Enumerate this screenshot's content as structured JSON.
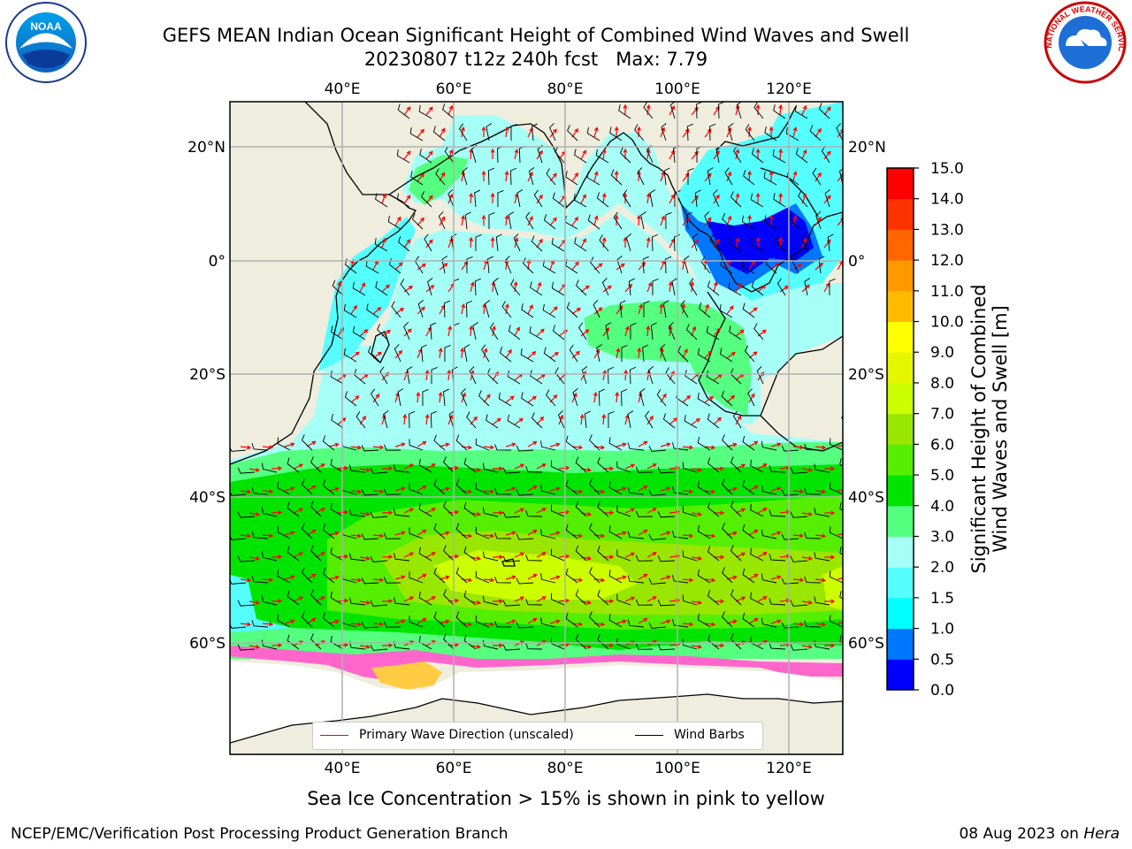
{
  "title": {
    "line1": "GEFS MEAN Indian Ocean Significant Height of Combined Wind Waves and Swell",
    "line2": "20230807 t12z 240h fcst   Max: 7.79"
  },
  "logos": {
    "left": {
      "name": "noaa-logo",
      "text": "NOAA",
      "ring_text": "NATIONAL OCEANIC AND ATMOSPHERIC ADMINISTRATION · U.S. DEPARTMENT OF COMMERCE"
    },
    "right": {
      "name": "nws-logo",
      "ring_text": "NATIONAL WEATHER SERVICE"
    }
  },
  "map": {
    "region": "Indian Ocean",
    "lon_range": [
      20,
      130
    ],
    "lat_range": [
      -72,
      28
    ],
    "lon_ticks": [
      "40°E",
      "60°E",
      "80°E",
      "100°E",
      "120°E"
    ],
    "lat_ticks_left": [
      "20°N",
      "0°",
      "20°S",
      "40°S",
      "60°S"
    ],
    "lat_ticks_right": [
      "20°N",
      "0°",
      "20°S",
      "40°S",
      "60°S"
    ],
    "land_color": "#efedde",
    "ocean_base_color": "#a6fff7",
    "overlays": [
      "Primary wave direction arrows (red)",
      "Wind barbs (black)"
    ]
  },
  "colorbar": {
    "label": "Significant Height of Combined Wind Waves and Swell [m]",
    "label_line1": "Significant Height of Combined",
    "label_line2": "Wind Waves and Swell [m]",
    "ticks": [
      "15.0",
      "14.0",
      "13.0",
      "12.0",
      "11.0",
      "10.0",
      "9.0",
      "8.0",
      "7.0",
      "6.0",
      "5.0",
      "4.0",
      "3.0",
      "2.0",
      "1.5",
      "1.0",
      "0.5",
      "0.0"
    ],
    "colors_bottom_to_top": [
      "#0000ff",
      "#0077ff",
      "#00ffff",
      "#55ffff",
      "#a6fff7",
      "#55ff80",
      "#00e400",
      "#55ee00",
      "#99e600",
      "#ccff00",
      "#e6f500",
      "#ffff00",
      "#ffbb00",
      "#ff9900",
      "#ff6600",
      "#ff3300",
      "#ff0000"
    ]
  },
  "legend": {
    "wave_direction": "Primary Wave Direction (unscaled)",
    "wind_barbs": "Wind Barbs",
    "wave_color": "#ff0000",
    "barb_color": "#000000"
  },
  "footer": {
    "caption": "Sea Ice Concentration > 15% is shown in pink to yellow",
    "left": "NCEP/EMC/Verification Post Processing Product Generation Branch",
    "right_date": "08 Aug 2023 on ",
    "right_host": "Hera"
  }
}
